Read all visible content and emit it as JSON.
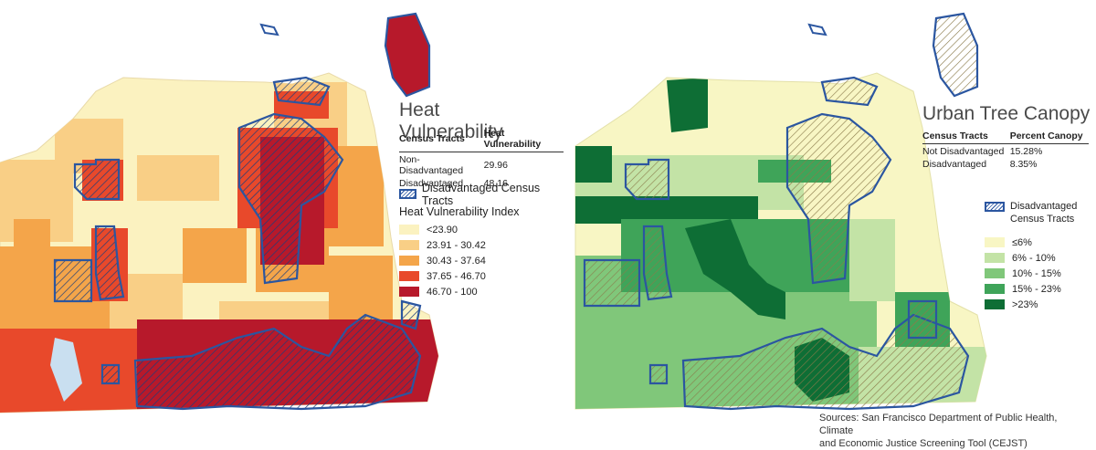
{
  "left_panel": {
    "title": "Heat Vulnerability",
    "table": {
      "headers": [
        "Census Tracts",
        "Heat Vulnerability"
      ],
      "rows": [
        {
          "label": "Non-Disadvantaged",
          "value": "29.96"
        },
        {
          "label": "Disadvantaged",
          "value": "48.16"
        }
      ]
    },
    "disadvantaged_label": "Disadvantaged Census Tracts",
    "legend_title": "Heat Vulnerability Index",
    "legend": [
      {
        "label": "<23.90",
        "color": "#fbf2c0"
      },
      {
        "label": "23.91 - 30.42",
        "color": "#f9cf86"
      },
      {
        "label": "30.43 - 37.64",
        "color": "#f4a54a"
      },
      {
        "label": "37.65 - 46.70",
        "color": "#e8492b"
      },
      {
        "label": "46.70 - 100",
        "color": "#b7192b"
      }
    ]
  },
  "right_panel": {
    "title": "Urban Tree Canopy",
    "table": {
      "headers": [
        "Census Tracts",
        "Percent Canopy"
      ],
      "rows": [
        {
          "label": "Not Disadvantaged",
          "value": "15.28%"
        },
        {
          "label": "Disadvantaged",
          "value": "8.35%"
        }
      ]
    },
    "disadvantaged_label_line1": "Disadvantaged",
    "disadvantaged_label_line2": "Census Tracts",
    "legend": [
      {
        "label": "≤6%",
        "color": "#f8f6c4"
      },
      {
        "label": "6% - 10%",
        "color": "#c3e3a6"
      },
      {
        "label": "10% - 15%",
        "color": "#80c77a"
      },
      {
        "label": "15% - 23%",
        "color": "#3fa459"
      },
      {
        "label": ">23%",
        "color": "#0e6e35"
      }
    ]
  },
  "source": {
    "line1": "Sources: San Francisco Department of Public Health, Climate",
    "line2": "and Economic Justice Screening Tool (CEJST)"
  },
  "colors": {
    "disadvantaged_outline": "#2b56a0",
    "water": "#c9dff0"
  }
}
